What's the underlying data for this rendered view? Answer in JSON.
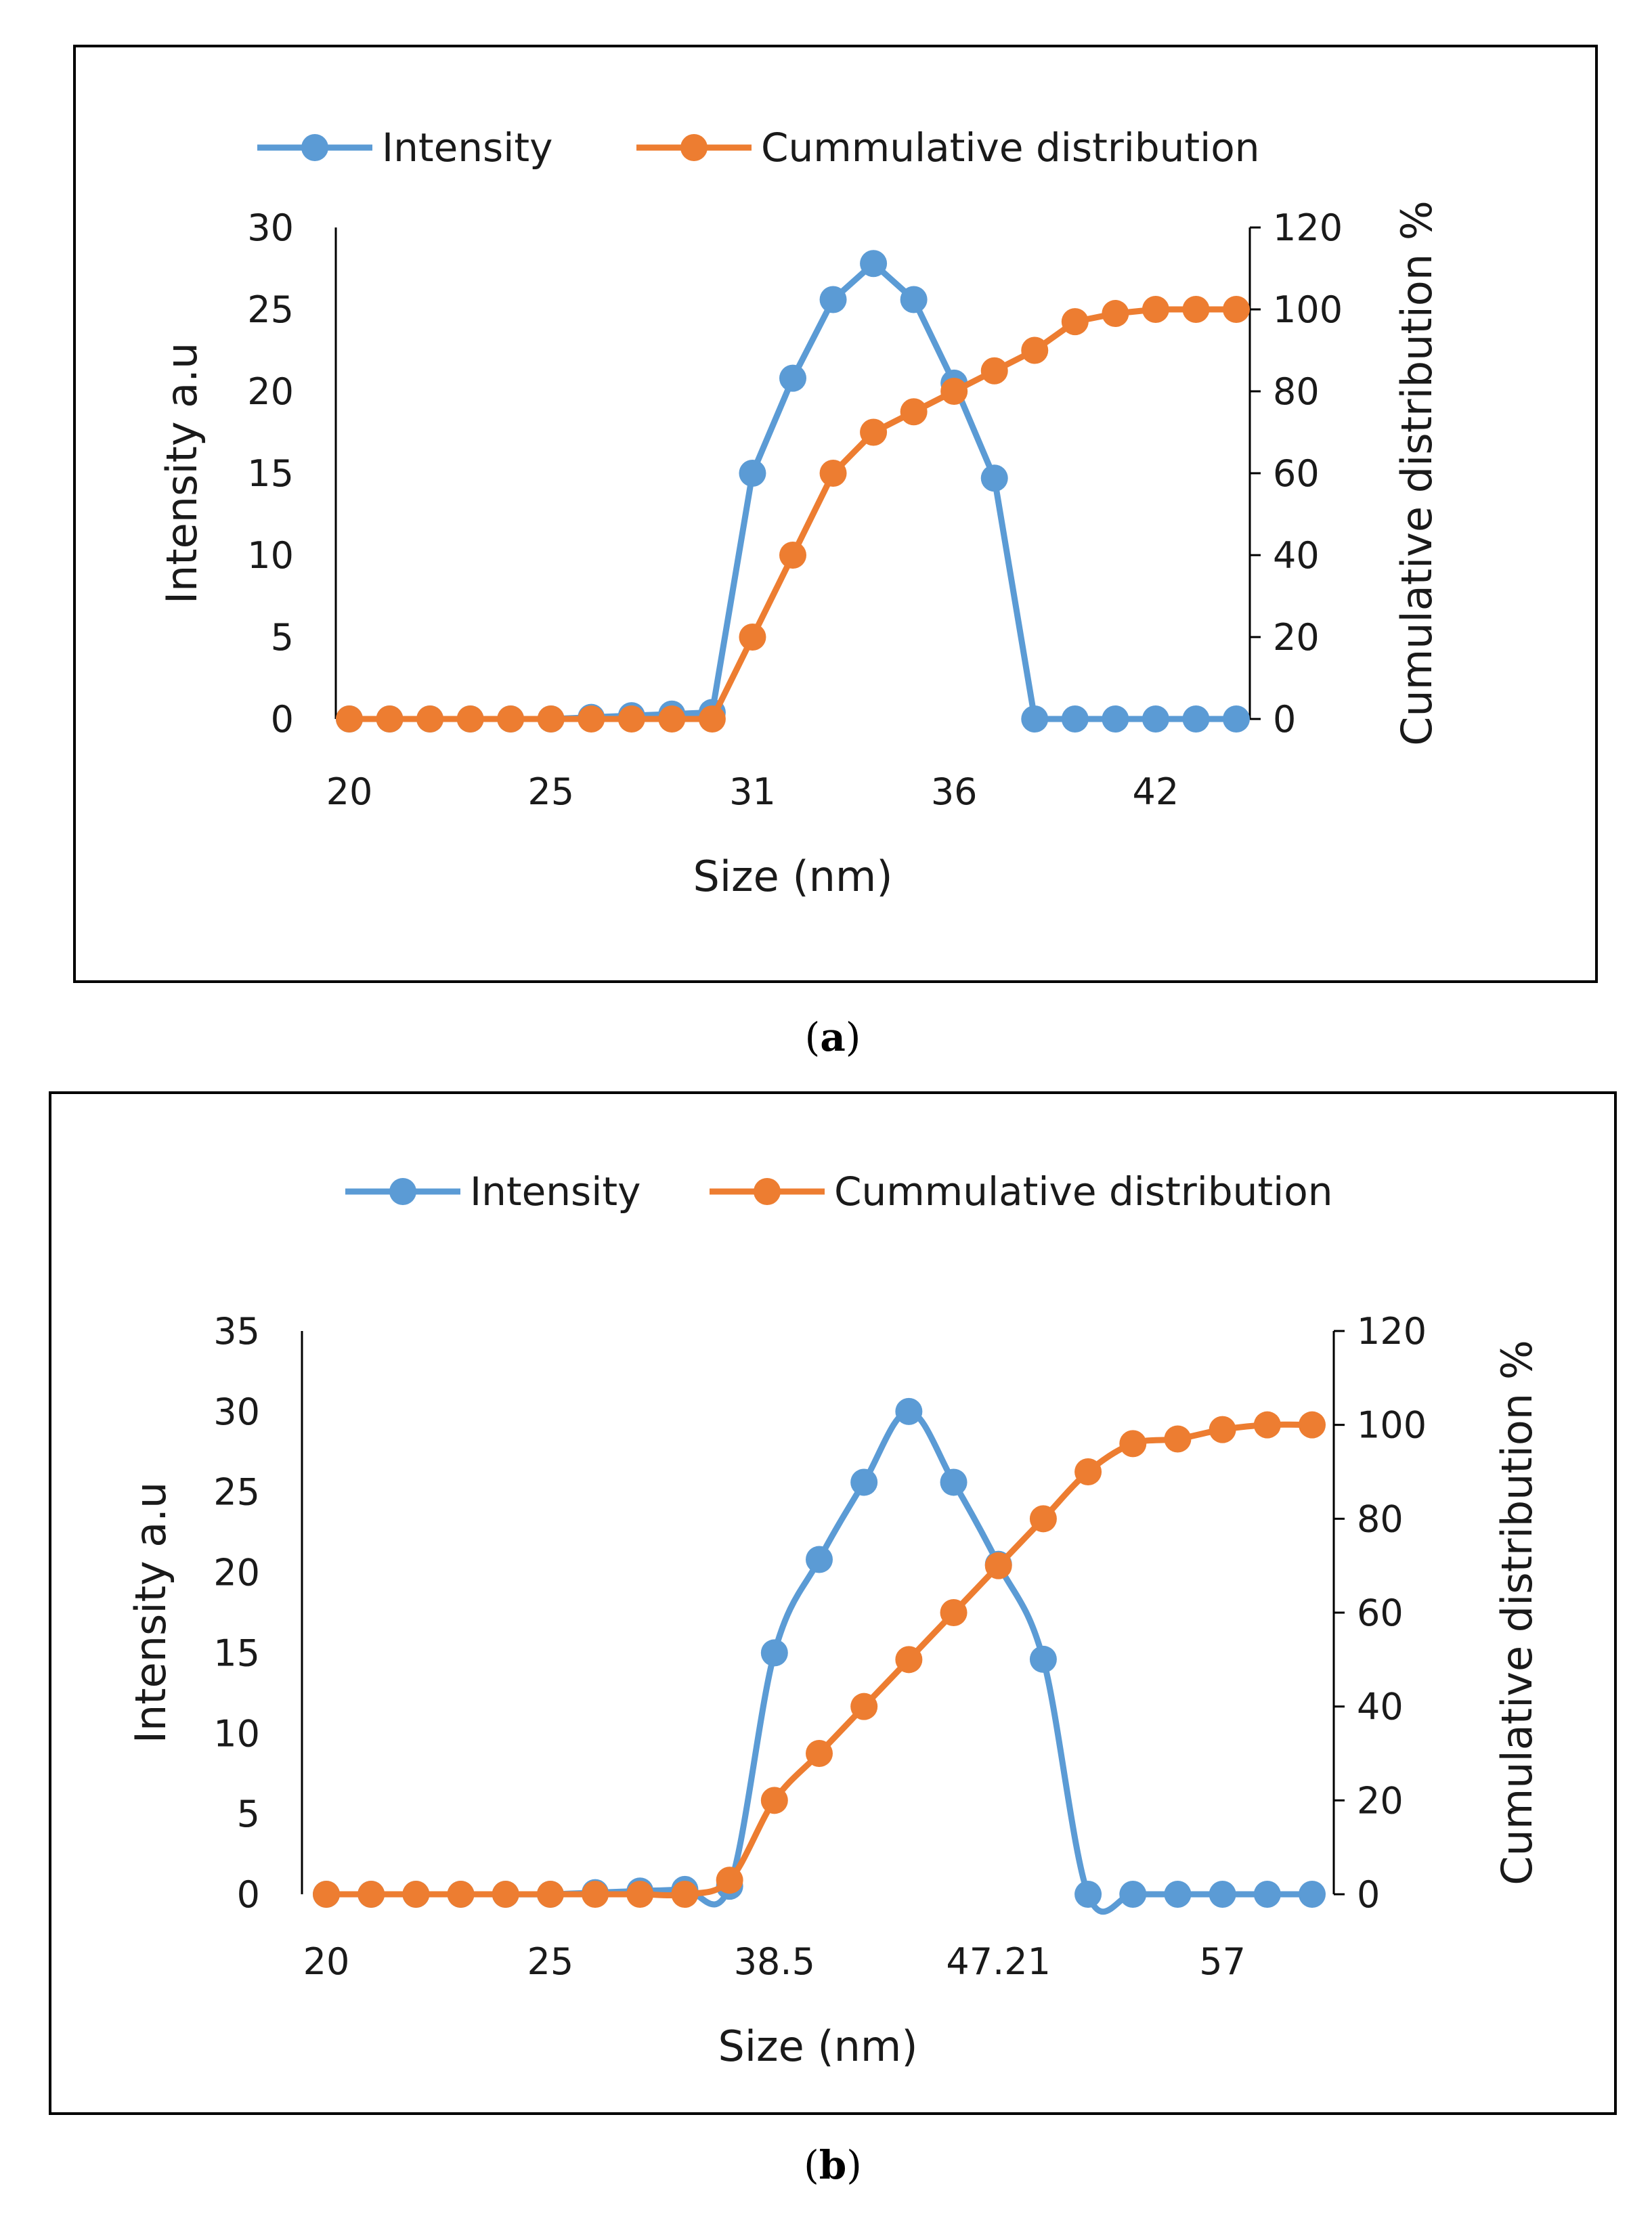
{
  "colors": {
    "intensity": "#5B9BD5",
    "cumulative": "#ED7D31",
    "axis": "#000000",
    "border": "#000000",
    "text": "#1a1a1a"
  },
  "captions": {
    "a": "a",
    "b": "b"
  },
  "chart_data": [
    {
      "id": "a",
      "type": "line",
      "legend": {
        "position": "top-center",
        "entries": [
          "Intensity",
          "Cummulative distribution"
        ]
      },
      "xlabel": "Size (nm)",
      "ylabel": "Intensity a.u",
      "y2label": "Cumulative distribution %",
      "x_tick_labels": [
        "20",
        "25",
        "31",
        "36",
        "42"
      ],
      "x_tick_positions": [
        0,
        5,
        10,
        15,
        20
      ],
      "point_count": 23,
      "ylim": [
        0,
        30
      ],
      "y_ticks": [
        0,
        5,
        10,
        15,
        20,
        25,
        30
      ],
      "y2lim": [
        0,
        120
      ],
      "y2_ticks": [
        0,
        20,
        40,
        60,
        80,
        100,
        120
      ],
      "smooth": false,
      "series": [
        {
          "name": "Intensity",
          "axis": "left",
          "values": [
            0,
            0,
            0,
            0,
            0,
            0,
            0.1,
            0.2,
            0.3,
            0.4,
            15,
            20.8,
            25.6,
            27.8,
            25.6,
            20.5,
            14.7,
            0,
            0,
            0,
            0,
            0,
            0
          ]
        },
        {
          "name": "Cummulative distribution",
          "axis": "right",
          "values": [
            0,
            0,
            0,
            0,
            0,
            0,
            0,
            0,
            0,
            0,
            20,
            40,
            60,
            70,
            75,
            80,
            85,
            90,
            97,
            99,
            100,
            100,
            100
          ]
        }
      ]
    },
    {
      "id": "b",
      "type": "line",
      "legend": {
        "position": "top-center",
        "entries": [
          "Intensity",
          "Cummulative distribution"
        ]
      },
      "xlabel": "Size (nm)",
      "ylabel": "Intensity a.u",
      "y2label": "Cumulative distribution %",
      "x_tick_labels": [
        "20",
        "25",
        "38.5",
        "47.21",
        "57"
      ],
      "x_tick_positions": [
        0,
        5,
        10,
        15,
        20
      ],
      "point_count": 23,
      "ylim": [
        0,
        35
      ],
      "y_ticks": [
        0,
        5,
        10,
        15,
        20,
        25,
        30,
        35
      ],
      "y2lim": [
        0,
        120
      ],
      "y2_ticks": [
        0,
        20,
        40,
        60,
        80,
        100,
        120
      ],
      "smooth": true,
      "series": [
        {
          "name": "Intensity",
          "axis": "left",
          "values": [
            0,
            0,
            0,
            0,
            0,
            0,
            0.1,
            0.2,
            0.3,
            0.5,
            15,
            20.8,
            25.6,
            30,
            25.6,
            20.5,
            14.6,
            0,
            0,
            0,
            0,
            0,
            0
          ]
        },
        {
          "name": "Cummulative distribution",
          "axis": "right",
          "values": [
            0,
            0,
            0,
            0,
            0,
            0,
            0,
            0,
            0,
            3,
            20,
            30,
            40,
            50,
            60,
            70,
            80,
            90,
            96,
            97,
            99,
            100,
            100
          ]
        }
      ]
    }
  ]
}
